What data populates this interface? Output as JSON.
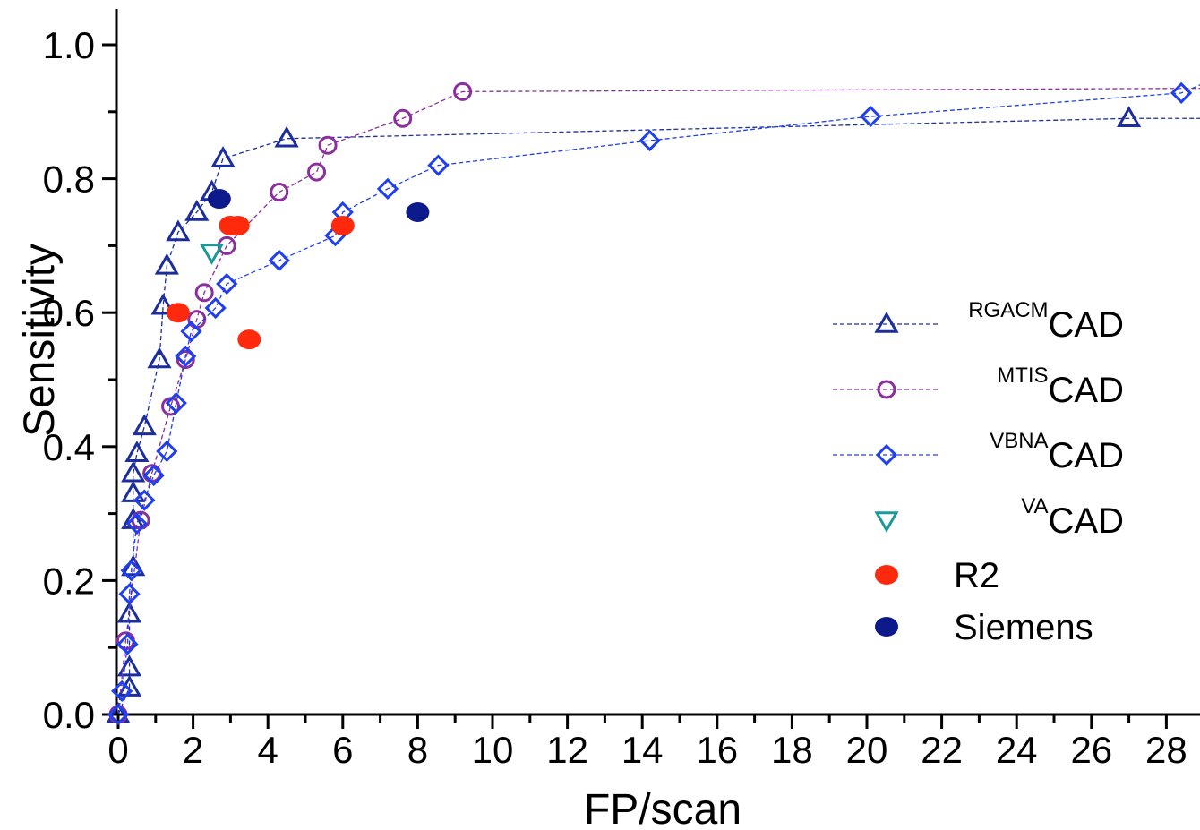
{
  "chart_data": {
    "type": "scatter",
    "xlabel": "FP/scan",
    "ylabel": "Sensitivity",
    "xlim": [
      -0.3,
      29.5
    ],
    "ylim": [
      -0.02,
      1.05
    ],
    "x_ticks": [
      "0",
      "2",
      "4",
      "6",
      "8",
      "10",
      "12",
      "14",
      "16",
      "18",
      "20",
      "22",
      "24",
      "26",
      "28"
    ],
    "y_ticks": [
      "0.0",
      "0.2",
      "0.4",
      "0.6",
      "0.8",
      "1.0"
    ],
    "grid": false,
    "legend_position": "right",
    "series": [
      {
        "name_sup": "RGACM",
        "name_main": "CAD",
        "marker": "triangle-up",
        "color": "#1c2da0",
        "line": "dashed",
        "points": [
          [
            0,
            0
          ],
          [
            0.3,
            0.04
          ],
          [
            0.3,
            0.07
          ],
          [
            0.3,
            0.15
          ],
          [
            0.4,
            0.22
          ],
          [
            0.4,
            0.29
          ],
          [
            0.4,
            0.33
          ],
          [
            0.4,
            0.36
          ],
          [
            0.5,
            0.39
          ],
          [
            0.7,
            0.43
          ],
          [
            1.1,
            0.53
          ],
          [
            1.2,
            0.61
          ],
          [
            1.3,
            0.67
          ],
          [
            1.6,
            0.72
          ],
          [
            2.1,
            0.75
          ],
          [
            2.5,
            0.78
          ],
          [
            2.8,
            0.83
          ],
          [
            4.5,
            0.86
          ],
          [
            27,
            0.89
          ],
          [
            29.5,
            0.89
          ]
        ]
      },
      {
        "name_sup": "MTIS",
        "name_main": "CAD",
        "marker": "circle",
        "color": "#8b2e9e",
        "line": "dashed",
        "points": [
          [
            0,
            0
          ],
          [
            0.2,
            0.11
          ],
          [
            0.6,
            0.29
          ],
          [
            0.9,
            0.36
          ],
          [
            1.4,
            0.46
          ],
          [
            1.8,
            0.53
          ],
          [
            2.1,
            0.59
          ],
          [
            2.3,
            0.63
          ],
          [
            2.9,
            0.7
          ],
          [
            4.3,
            0.78
          ],
          [
            5.3,
            0.81
          ],
          [
            5.6,
            0.85
          ],
          [
            7.6,
            0.89
          ],
          [
            9.2,
            0.93
          ],
          [
            29.5,
            0.935
          ]
        ]
      },
      {
        "name_sup": "VBNA",
        "name_main": "CAD",
        "marker": "diamond",
        "color": "#1f3ff0",
        "line": "dashed",
        "points": [
          [
            0,
            0
          ],
          [
            0.1,
            0.035
          ],
          [
            0.25,
            0.105
          ],
          [
            0.3,
            0.18
          ],
          [
            0.35,
            0.215
          ],
          [
            0.5,
            0.285
          ],
          [
            0.7,
            0.32
          ],
          [
            0.95,
            0.357
          ],
          [
            1.3,
            0.393
          ],
          [
            1.55,
            0.465
          ],
          [
            1.8,
            0.535
          ],
          [
            1.95,
            0.572
          ],
          [
            2.6,
            0.607
          ],
          [
            2.9,
            0.643
          ],
          [
            4.3,
            0.678
          ],
          [
            5.8,
            0.715
          ],
          [
            6.0,
            0.75
          ],
          [
            7.2,
            0.785
          ],
          [
            8.55,
            0.82
          ],
          [
            14.2,
            0.857
          ],
          [
            20.1,
            0.893
          ],
          [
            28.4,
            0.928
          ],
          [
            29.5,
            0.94
          ]
        ]
      },
      {
        "name_sup": "VA",
        "name_main": "CAD",
        "marker": "triangle-down",
        "color": "#1a9a99",
        "line": "none",
        "points": [
          [
            2.5,
            0.69
          ]
        ]
      },
      {
        "name_sup": "",
        "name_main": "R2",
        "marker": "filled-circle",
        "color": "#ff2a0d",
        "line": "none",
        "points": [
          [
            1.6,
            0.6
          ],
          [
            3.0,
            0.73
          ],
          [
            3.2,
            0.73
          ],
          [
            3.5,
            0.56
          ],
          [
            6.0,
            0.73
          ]
        ]
      },
      {
        "name_sup": "",
        "name_main": "Siemens",
        "marker": "filled-circle",
        "color": "#0d1a8c",
        "line": "none",
        "points": [
          [
            2.7,
            0.77
          ],
          [
            8.0,
            0.75
          ]
        ]
      }
    ]
  }
}
